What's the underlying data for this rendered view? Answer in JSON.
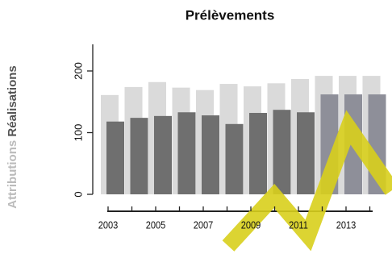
{
  "chart_data": {
    "type": "bar",
    "title": "Prélèvements",
    "y_label_light": "Attributions",
    "y_label_dark": "Réalisations",
    "categories": [
      "2003",
      null,
      "2005",
      null,
      "2007",
      null,
      "2009",
      null,
      "2011",
      null,
      "2013",
      null
    ],
    "series": [
      {
        "name": "Attributions",
        "color": "#dadada",
        "values": [
          161,
          174,
          182,
          173,
          169,
          179,
          175,
          180,
          187,
          192,
          192,
          192
        ]
      },
      {
        "name": "Réalisations",
        "colors": [
          "#6f6f6f",
          "#6f6f6f",
          "#6f6f6f",
          "#6f6f6f",
          "#6f6f6f",
          "#6f6f6f",
          "#6f6f6f",
          "#6f6f6f",
          "#6f6f6f",
          "#8e8f99",
          "#8e8f99",
          "#8e8f99"
        ],
        "values": [
          118,
          124,
          127,
          133,
          128,
          114,
          132,
          137,
          133,
          162,
          162,
          162
        ]
      }
    ],
    "ylim": [
      0,
      240
    ],
    "yticks": [
      0,
      100,
      200
    ]
  }
}
